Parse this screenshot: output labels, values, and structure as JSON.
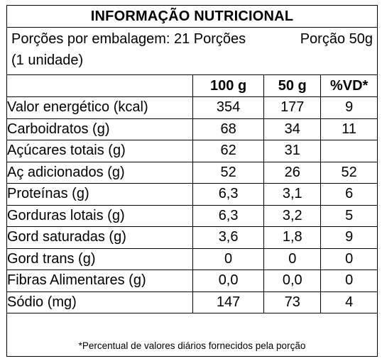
{
  "title": "INFORMAÇÃO NUTRICIONAL",
  "portions": {
    "per_package": "Porções por embalagem: 21 Porções",
    "portion_size": "Porção 50g",
    "unit": "(1 unidade)"
  },
  "columns": {
    "label": "",
    "per100": "100 g",
    "per50": "50 g",
    "vd": "%VD*"
  },
  "rows": [
    {
      "name": "Valor energético (kcal)",
      "per100": "354",
      "per50": "177",
      "vd": "9"
    },
    {
      "name": "Carboidratos (g)",
      "per100": "68",
      "per50": "34",
      "vd": "11"
    },
    {
      "name": "Açúcares totais (g)",
      "per100": "62",
      "per50": "31",
      "vd": ""
    },
    {
      "name": "Aç adicionados (g)",
      "per100": "52",
      "per50": "26",
      "vd": "52"
    },
    {
      "name": "Proteínas (g)",
      "per100": "6,3",
      "per50": "3,1",
      "vd": "6"
    },
    {
      "name": "Gorduras lotais (g)",
      "per100": "6,3",
      "per50": "3,2",
      "vd": "5"
    },
    {
      "name": "Gord saturadas (g)",
      "per100": "3,6",
      "per50": "1,8",
      "vd": "9"
    },
    {
      "name": "Gord trans (g)",
      "per100": "0",
      "per50": "0",
      "vd": "0"
    },
    {
      "name": "Fibras Alimentares (g)",
      "per100": "0,0",
      "per50": "0,0",
      "vd": "0"
    },
    {
      "name": "Sódio (mg)",
      "per100": "147",
      "per50": "73",
      "vd": "4"
    }
  ],
  "footnote": "*Percentual de valores diários fornecidos pela porção"
}
